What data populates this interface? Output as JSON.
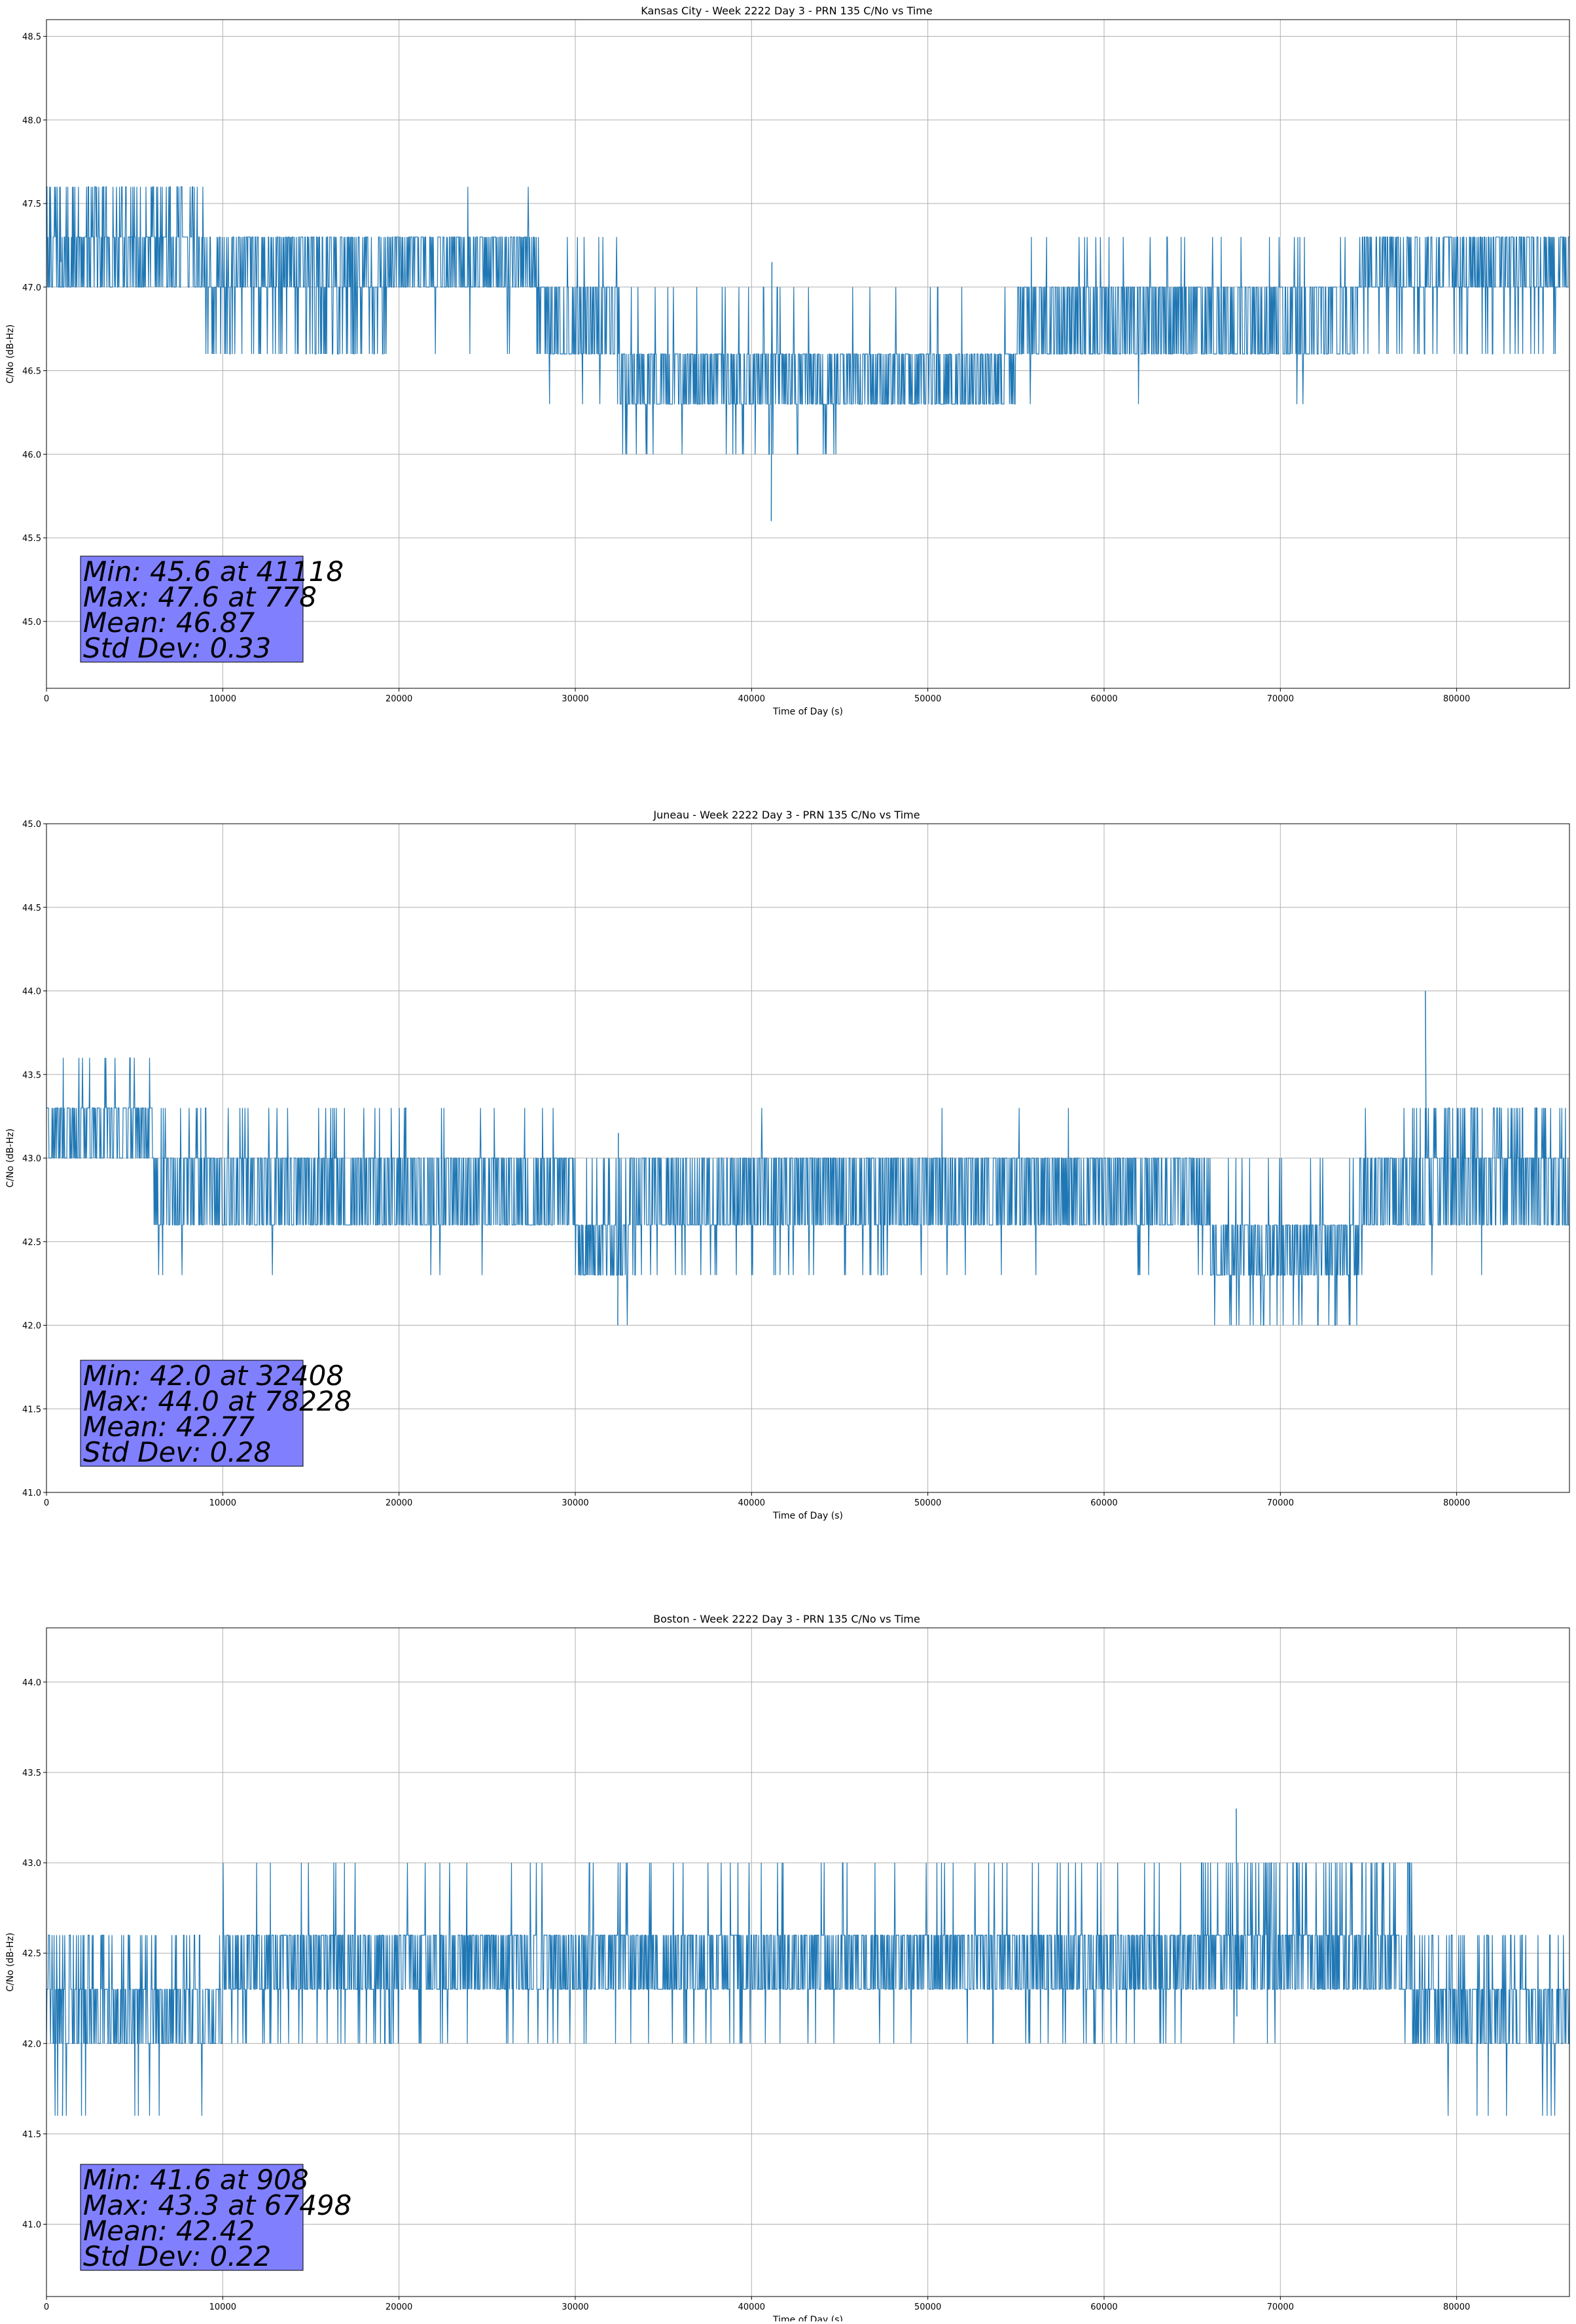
{
  "chart_data": [
    {
      "type": "line",
      "title": "Kansas City - Week 2222 Day 3 - PRN 135 C/No vs Time",
      "xlabel": "Time of Day (s)",
      "ylabel": "C/No (dB-Hz)",
      "xlim": [
        0,
        86400
      ],
      "ylim": [
        44.6,
        48.6
      ],
      "xticks": [
        0,
        10000,
        20000,
        30000,
        40000,
        50000,
        60000,
        70000,
        80000
      ],
      "yticks": [
        45.0,
        45.5,
        46.0,
        46.5,
        47.0,
        47.5,
        48.0,
        48.5
      ],
      "grid": true,
      "line_color": "#1f77b4",
      "quantization_step": 0.3,
      "segments": [
        {
          "x": [
            0,
            9000
          ],
          "base": 47.3,
          "low": 47.0,
          "up_spike": 47.6,
          "up_rate": 0.5,
          "down_spike": 46.6,
          "down_rate": 0.02
        },
        {
          "x": [
            9000,
            19500
          ],
          "base": 47.3,
          "low": 47.0,
          "up_spike": 47.6,
          "up_rate": 0.01,
          "down_spike": 46.6,
          "down_rate": 0.35
        },
        {
          "x": [
            19500,
            27800
          ],
          "base": 47.3,
          "low": 47.0,
          "up_spike": 47.6,
          "up_rate": 0.01,
          "down_spike": 46.6,
          "down_rate": 0.02
        },
        {
          "x": [
            27800,
            32500
          ],
          "base": 47.0,
          "low": 46.6,
          "up_spike": 47.3,
          "up_rate": 0.12,
          "down_spike": 46.3,
          "down_rate": 0.05
        },
        {
          "x": [
            32500,
            45000
          ],
          "base": 46.6,
          "low": 46.3,
          "up_spike": 47.0,
          "up_rate": 0.04,
          "down_spike": 46.0,
          "down_rate": 0.12
        },
        {
          "x": [
            45000,
            55000
          ],
          "base": 46.6,
          "low": 46.3,
          "up_spike": 47.0,
          "up_rate": 0.05,
          "down_spike": 46.0,
          "down_rate": 0.0
        },
        {
          "x": [
            55000,
            74500
          ],
          "base": 47.0,
          "low": 46.6,
          "up_spike": 47.3,
          "up_rate": 0.1,
          "down_spike": 46.3,
          "down_rate": 0.02
        },
        {
          "x": [
            74500,
            86400
          ],
          "base": 47.3,
          "low": 47.0,
          "up_spike": 47.0,
          "up_rate": 0.0,
          "down_spike": 46.6,
          "down_rate": 0.15
        }
      ],
      "extremes": [
        {
          "x": 41118,
          "y": 45.6
        },
        {
          "x": 778,
          "y": 47.6
        }
      ],
      "stats": {
        "min": "Min: 45.6 at 41118",
        "max": "Max: 47.6 at 778",
        "mean": "Mean: 46.87",
        "std": "Std Dev: 0.33"
      }
    },
    {
      "type": "line",
      "title": "Juneau - Week 2222 Day 3 - PRN 135 C/No vs Time",
      "xlabel": "Time of Day (s)",
      "ylabel": "C/No (dB-Hz)",
      "xlim": [
        0,
        86400
      ],
      "ylim": [
        41.0,
        45.0
      ],
      "xticks": [
        0,
        10000,
        20000,
        30000,
        40000,
        50000,
        60000,
        70000,
        80000
      ],
      "yticks": [
        41.0,
        41.5,
        42.0,
        42.5,
        43.0,
        43.5,
        44.0,
        44.5,
        45.0
      ],
      "grid": true,
      "line_color": "#1f77b4",
      "quantization_step": 0.3,
      "segments": [
        {
          "x": [
            0,
            6000
          ],
          "base": 43.3,
          "low": 43.0,
          "up_spike": 43.6,
          "up_rate": 0.08,
          "down_spike": 42.6,
          "down_rate": 0.02
        },
        {
          "x": [
            6000,
            30000
          ],
          "base": 43.0,
          "low": 42.6,
          "up_spike": 43.3,
          "up_rate": 0.1,
          "down_spike": 42.3,
          "down_rate": 0.02
        },
        {
          "x": [
            30000,
            33000
          ],
          "base": 42.6,
          "low": 42.3,
          "up_spike": 43.0,
          "up_rate": 0.25,
          "down_spike": 42.0,
          "down_rate": 0.05
        },
        {
          "x": [
            33000,
            48000
          ],
          "base": 43.0,
          "low": 42.6,
          "up_spike": 43.3,
          "up_rate": 0.01,
          "down_spike": 42.3,
          "down_rate": 0.12
        },
        {
          "x": [
            48000,
            66000
          ],
          "base": 43.0,
          "low": 42.6,
          "up_spike": 43.3,
          "up_rate": 0.01,
          "down_spike": 42.3,
          "down_rate": 0.03
        },
        {
          "x": [
            66000,
            74500
          ],
          "base": 42.6,
          "low": 42.3,
          "up_spike": 43.0,
          "up_rate": 0.1,
          "down_spike": 42.0,
          "down_rate": 0.15
        },
        {
          "x": [
            74500,
            77000
          ],
          "base": 43.0,
          "low": 42.6,
          "up_spike": 43.3,
          "up_rate": 0.05,
          "down_spike": 42.3,
          "down_rate": 0.02
        },
        {
          "x": [
            77000,
            86400
          ],
          "base": 43.0,
          "low": 42.6,
          "up_spike": 43.3,
          "up_rate": 0.35,
          "down_spike": 42.3,
          "down_rate": 0.01
        }
      ],
      "extremes": [
        {
          "x": 32408,
          "y": 42.0
        },
        {
          "x": 78228,
          "y": 44.0
        }
      ],
      "stats": {
        "min": "Min: 42.0 at 32408",
        "max": "Max: 44.0 at 78228",
        "mean": "Mean: 42.77",
        "std": "Std Dev: 0.28"
      }
    },
    {
      "type": "line",
      "title": "Boston - Week 2222 Day 3 - PRN 135 C/No vs Time",
      "xlabel": "Time of Day (s)",
      "ylabel": "C/No (dB-Hz)",
      "xlim": [
        0,
        86400
      ],
      "ylim": [
        40.6,
        44.3
      ],
      "xticks": [
        0,
        10000,
        20000,
        30000,
        40000,
        50000,
        60000,
        70000,
        80000
      ],
      "yticks": [
        41.0,
        41.5,
        42.0,
        42.5,
        43.0,
        43.5,
        44.0
      ],
      "grid": true,
      "line_color": "#1f77b4",
      "quantization_step": 0.3,
      "segments": [
        {
          "x": [
            0,
            10000
          ],
          "base": 42.3,
          "low": 42.0,
          "up_spike": 42.6,
          "up_rate": 0.3,
          "down_spike": 41.6,
          "down_rate": 0.04
        },
        {
          "x": [
            10000,
            20000
          ],
          "base": 42.6,
          "low": 42.3,
          "up_spike": 43.0,
          "up_rate": 0.04,
          "down_spike": 42.0,
          "down_rate": 0.25
        },
        {
          "x": [
            20000,
            65000
          ],
          "base": 42.6,
          "low": 42.3,
          "up_spike": 43.0,
          "up_rate": 0.08,
          "down_spike": 42.0,
          "down_rate": 0.08
        },
        {
          "x": [
            65000,
            77500
          ],
          "base": 42.6,
          "low": 42.3,
          "up_spike": 43.0,
          "up_rate": 0.35,
          "down_spike": 42.0,
          "down_rate": 0.02
        },
        {
          "x": [
            77500,
            86400
          ],
          "base": 42.3,
          "low": 42.0,
          "up_spike": 42.6,
          "up_rate": 0.3,
          "down_spike": 41.6,
          "down_rate": 0.06
        }
      ],
      "extremes": [
        {
          "x": 908,
          "y": 41.6
        },
        {
          "x": 67498,
          "y": 43.3
        }
      ],
      "stats": {
        "min": "Min: 41.6 at 908",
        "max": "Max: 43.3 at 67498",
        "mean": "Mean: 42.42",
        "std": "Std Dev: 0.22"
      }
    }
  ],
  "stats_box_color": "#8080ff"
}
